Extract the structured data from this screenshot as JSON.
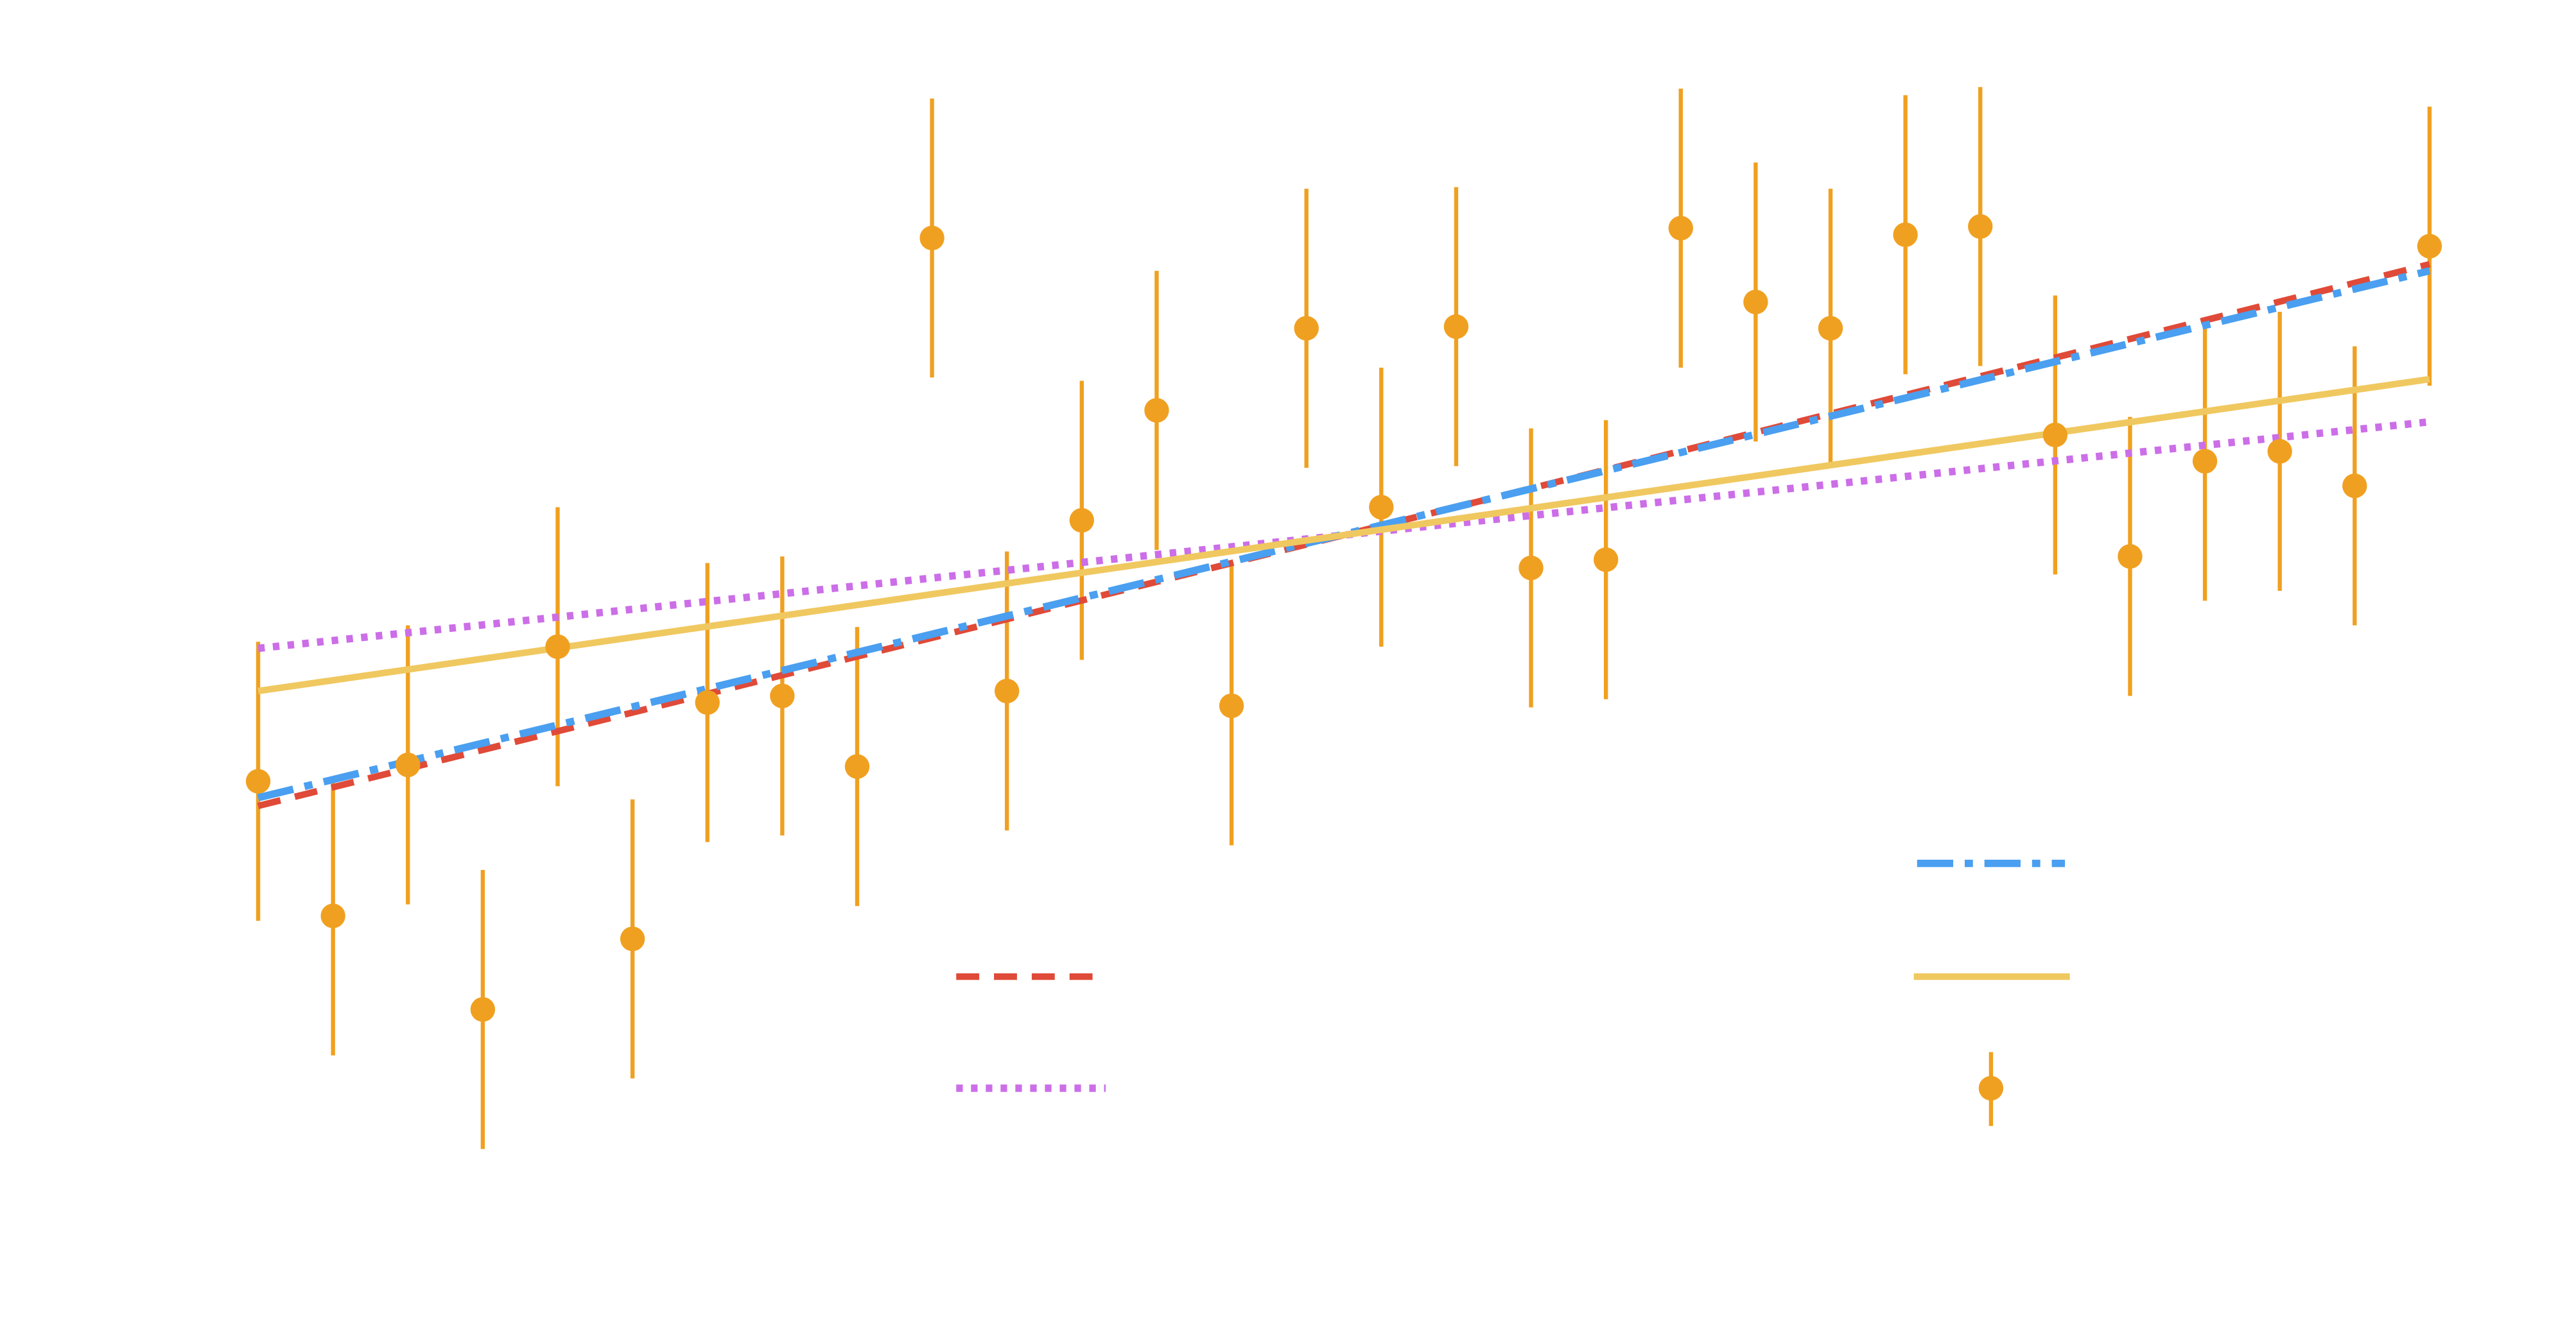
{
  "chart_data": {
    "type": "errorbar",
    "x": [
      0,
      1,
      2,
      3,
      4,
      5,
      6,
      7,
      8,
      9,
      10,
      11,
      12,
      13,
      14,
      15,
      16,
      17,
      18,
      19,
      20,
      21,
      22,
      23,
      24,
      25,
      26,
      27,
      28,
      29
    ],
    "values": [
      4.48,
      2.84,
      4.68,
      1.7,
      6.12,
      2.56,
      5.44,
      5.52,
      4.66,
      11.1,
      5.58,
      7.66,
      9.0,
      5.4,
      10.0,
      7.82,
      10.02,
      7.08,
      7.18,
      11.22,
      10.32,
      10.0,
      11.14,
      11.24,
      8.7,
      7.22,
      8.38,
      8.5,
      8.08,
      11.0
    ],
    "errors": [
      1.7,
      1.7,
      1.7,
      1.7,
      1.7,
      1.7,
      1.7,
      1.7,
      1.7,
      1.7,
      1.7,
      1.7,
      1.7,
      1.7,
      1.7,
      1.7,
      1.7,
      1.7,
      1.7,
      1.7,
      1.7,
      1.7,
      1.7,
      1.7,
      1.7,
      1.7,
      1.7,
      1.7,
      1.7,
      1.7
    ],
    "color": "#f0a020",
    "xlim": [
      0,
      29
    ],
    "ylim": [
      -2,
      14
    ],
    "fits": [
      {
        "color": "#e04a38",
        "style": "dashed",
        "x": [
          0,
          29
        ],
        "values": [
          4.18,
          10.78
        ]
      },
      {
        "color": "#cc6ee8",
        "style": "dotted",
        "x": [
          0,
          29
        ],
        "values": [
          6.1,
          8.86
        ]
      },
      {
        "color": "#4a9ff0",
        "style": "dashdot",
        "x": [
          0,
          29
        ],
        "values": [
          4.28,
          10.7
        ]
      },
      {
        "color": "#f0c860",
        "style": "solid",
        "x": [
          0,
          29
        ],
        "values": [
          5.58,
          9.38
        ]
      }
    ]
  }
}
